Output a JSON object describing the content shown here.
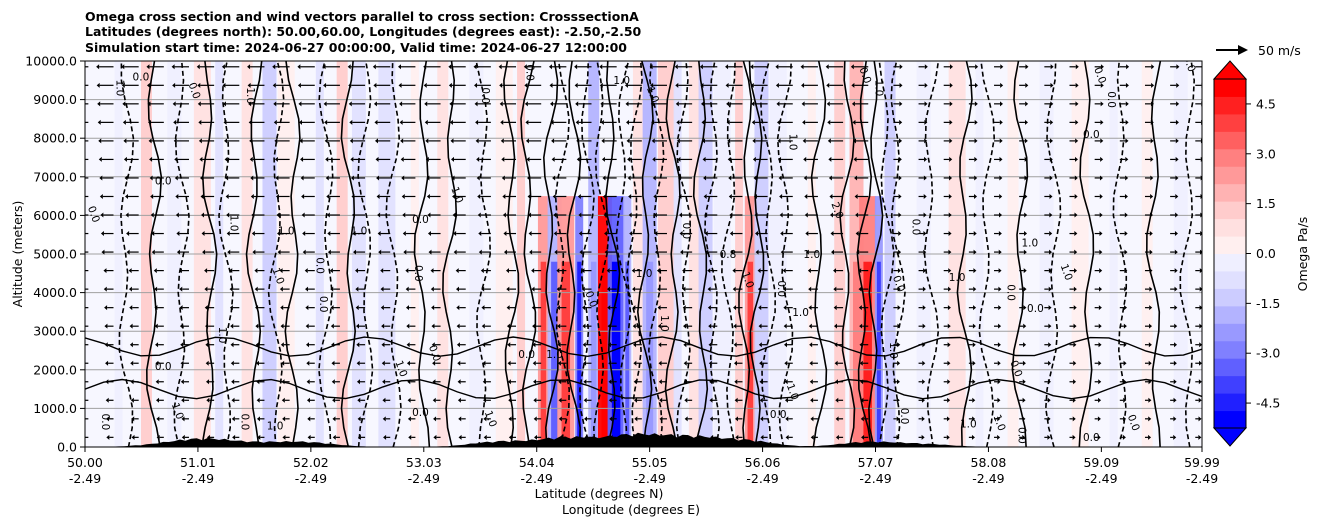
{
  "chart_data": {
    "type": "heatmap",
    "title_lines": [
      "Omega cross section and wind vectors parallel to cross section: CrosssectionA",
      "Latitudes (degrees north): 50.00,60.00, Longitudes (degrees east): -2.50,-2.50",
      "Simulation start time: 2024-06-27 00:00:00, Valid time: 2024-06-27 12:00:00"
    ],
    "ylabel": "Altitude (meters)",
    "xlabel_line1": "Latitude (degrees N)",
    "xlabel_line2": "Longitude (degrees E)",
    "ylim": [
      0,
      10000
    ],
    "xlim": [
      50.0,
      59.99
    ],
    "y_ticks": [
      "0.0",
      "1000.0",
      "2000.0",
      "3000.0",
      "4000.0",
      "5000.0",
      "6000.0",
      "7000.0",
      "8000.0",
      "9000.0",
      "10000.0"
    ],
    "x_ticks": [
      {
        "lat": "50.00",
        "lon": "-2.49",
        "value": 50.0
      },
      {
        "lat": "51.01",
        "lon": "-2.49",
        "value": 51.01
      },
      {
        "lat": "52.02",
        "lon": "-2.49",
        "value": 52.02
      },
      {
        "lat": "53.03",
        "lon": "-2.49",
        "value": 53.03
      },
      {
        "lat": "54.04",
        "lon": "-2.49",
        "value": 54.04
      },
      {
        "lat": "55.05",
        "lon": "-2.49",
        "value": 55.05
      },
      {
        "lat": "56.06",
        "lon": "-2.49",
        "value": 56.06
      },
      {
        "lat": "57.07",
        "lon": "-2.49",
        "value": 57.07
      },
      {
        "lat": "58.08",
        "lon": "-2.49",
        "value": 58.08
      },
      {
        "lat": "59.09",
        "lon": "-2.49",
        "value": 59.09
      },
      {
        "lat": "59.99",
        "lon": "-2.49",
        "value": 59.99
      }
    ],
    "colorbar": {
      "label": "Omega Pa/s",
      "range": [
        -5.25,
        5.25
      ],
      "ticks": [
        "-4.5",
        "-3.0",
        "-1.5",
        "0.0",
        "1.5",
        "3.0",
        "4.5"
      ],
      "colors": [
        "#0000ff",
        "#2020ff",
        "#4040ff",
        "#6060ff",
        "#8080ff",
        "#9999ff",
        "#b3b3ff",
        "#ccccff",
        "#e0e0ff",
        "#efefff",
        "#ffefef",
        "#ffe0e0",
        "#ffcccc",
        "#ffb3b3",
        "#ff9999",
        "#ff8080",
        "#ff6060",
        "#ff4040",
        "#ff2020",
        "#ff0000"
      ]
    },
    "quiver_key": "50 m/s",
    "omega_strips": [
      {
        "x": 50.3,
        "v": -0.3
      },
      {
        "x": 50.55,
        "v": 1.2
      },
      {
        "x": 50.8,
        "v": -0.5
      },
      {
        "x": 51.05,
        "v": 0.8
      },
      {
        "x": 51.2,
        "v": -1.0
      },
      {
        "x": 51.45,
        "v": 0.6
      },
      {
        "x": 51.65,
        "v": -1.1
      },
      {
        "x": 51.8,
        "v": 0.5
      },
      {
        "x": 52.1,
        "v": -0.6
      },
      {
        "x": 52.3,
        "v": 1.4
      },
      {
        "x": 52.45,
        "v": -0.8
      },
      {
        "x": 52.7,
        "v": -0.6
      },
      {
        "x": 52.95,
        "v": 0.5
      },
      {
        "x": 53.2,
        "v": 0.9
      },
      {
        "x": 53.5,
        "v": -0.4
      },
      {
        "x": 53.75,
        "v": 0.4
      },
      {
        "x": 53.9,
        "v": 1.2
      },
      {
        "x": 54.1,
        "v": 2.4
      },
      {
        "x": 54.2,
        "v": -2.1
      },
      {
        "x": 54.3,
        "v": 2.6
      },
      {
        "x": 54.42,
        "v": -2.8
      },
      {
        "x": 54.55,
        "v": -1.6
      },
      {
        "x": 54.65,
        "v": 5.0
      },
      {
        "x": 54.75,
        "v": -3.4
      },
      {
        "x": 54.85,
        "v": -2.1
      },
      {
        "x": 54.95,
        "v": 0.9
      },
      {
        "x": 55.05,
        "v": -1.6
      },
      {
        "x": 55.2,
        "v": 1.2
      },
      {
        "x": 55.3,
        "v": -0.9
      },
      {
        "x": 55.45,
        "v": 1.0
      },
      {
        "x": 55.55,
        "v": -1.4
      },
      {
        "x": 55.7,
        "v": -0.5
      },
      {
        "x": 55.85,
        "v": 1.2
      },
      {
        "x": 55.95,
        "v": 2.3
      },
      {
        "x": 56.05,
        "v": -1.3
      },
      {
        "x": 56.2,
        "v": -0.4
      },
      {
        "x": 56.5,
        "v": 0.5
      },
      {
        "x": 56.75,
        "v": 1.4
      },
      {
        "x": 56.9,
        "v": 1.9
      },
      {
        "x": 57.0,
        "v": 2.7
      },
      {
        "x": 57.1,
        "v": -2.4
      },
      {
        "x": 57.2,
        "v": -1.1
      },
      {
        "x": 57.5,
        "v": -0.5
      },
      {
        "x": 57.8,
        "v": 0.6
      },
      {
        "x": 58.0,
        "v": -0.3
      },
      {
        "x": 58.3,
        "v": 0.5
      },
      {
        "x": 58.6,
        "v": -0.4
      },
      {
        "x": 58.9,
        "v": 0.4
      },
      {
        "x": 59.2,
        "v": -0.5
      },
      {
        "x": 59.5,
        "v": 0.4
      },
      {
        "x": 59.8,
        "v": -0.3
      }
    ],
    "terrain": [
      {
        "x": 50.75,
        "h": 80
      },
      {
        "x": 51.1,
        "h": 200
      },
      {
        "x": 51.6,
        "h": 90
      },
      {
        "x": 52.0,
        "h": 120
      },
      {
        "x": 53.7,
        "h": 150
      },
      {
        "x": 54.3,
        "h": 260
      },
      {
        "x": 54.9,
        "h": 320
      },
      {
        "x": 55.4,
        "h": 260
      },
      {
        "x": 55.9,
        "h": 180
      },
      {
        "x": 57.0,
        "h": 140
      },
      {
        "x": 57.5,
        "h": 80
      }
    ],
    "contour_labels": [
      {
        "t": "1.0",
        "x": 50.28,
        "y": 9300
      },
      {
        "t": "0.0",
        "x": 50.5,
        "y": 9500
      },
      {
        "t": "0.0",
        "x": 50.95,
        "y": 9200
      },
      {
        "t": "1.0",
        "x": 51.45,
        "y": 9100
      },
      {
        "t": "0.0",
        "x": 50.7,
        "y": 6800
      },
      {
        "t": "0.0",
        "x": 50.05,
        "y": 6000
      },
      {
        "t": "1.0",
        "x": 51.3,
        "y": 5800
      },
      {
        "t": "1.0",
        "x": 51.8,
        "y": 5500
      },
      {
        "t": "1.0",
        "x": 51.7,
        "y": 4400
      },
      {
        "t": "0.0",
        "x": 52.07,
        "y": 4700
      },
      {
        "t": "0.0",
        "x": 53.0,
        "y": 5800
      },
      {
        "t": "1.0",
        "x": 53.3,
        "y": 6500
      },
      {
        "t": "0.0",
        "x": 52.95,
        "y": 4500
      },
      {
        "t": "1.0",
        "x": 52.45,
        "y": 5500
      },
      {
        "t": "0.0",
        "x": 53.1,
        "y": 2400
      },
      {
        "t": "1.0",
        "x": 51.2,
        "y": 2900
      },
      {
        "t": "0.0",
        "x": 50.7,
        "y": 2000
      },
      {
        "t": "1.0",
        "x": 52.8,
        "y": 2000
      },
      {
        "t": "0.0",
        "x": 51.4,
        "y": 650
      },
      {
        "t": "1.0",
        "x": 51.7,
        "y": 450
      },
      {
        "t": "1.0",
        "x": 50.8,
        "y": 900
      },
      {
        "t": "0.0",
        "x": 50.15,
        "y": 650
      },
      {
        "t": "0.0",
        "x": 53.0,
        "y": 800
      },
      {
        "t": "1.0",
        "x": 53.6,
        "y": 700
      },
      {
        "t": "0.0",
        "x": 53.95,
        "y": 9700
      },
      {
        "t": "1.0",
        "x": 54.8,
        "y": 9400
      },
      {
        "t": "1.0",
        "x": 55.05,
        "y": 9100
      },
      {
        "t": "0.0",
        "x": 55.35,
        "y": 5600
      },
      {
        "t": "0.8",
        "x": 55.75,
        "y": 4900
      },
      {
        "t": "1.0",
        "x": 55.9,
        "y": 4300
      },
      {
        "t": "0.0",
        "x": 56.2,
        "y": 4100
      },
      {
        "t": "1.0",
        "x": 56.4,
        "y": 3400
      },
      {
        "t": "2.0",
        "x": 56.7,
        "y": 6100
      },
      {
        "t": "1.0",
        "x": 56.3,
        "y": 7900
      },
      {
        "t": "1.0",
        "x": 56.5,
        "y": 4900
      },
      {
        "t": "0.0",
        "x": 56.95,
        "y": 9600
      },
      {
        "t": "1.0",
        "x": 57.07,
        "y": 9300
      },
      {
        "t": "0.0",
        "x": 58.5,
        "y": 3500
      },
      {
        "t": "1.0",
        "x": 58.75,
        "y": 4500
      },
      {
        "t": "0.0",
        "x": 58.25,
        "y": 4000
      },
      {
        "t": "1.0",
        "x": 58.45,
        "y": 5200
      },
      {
        "t": "0.0",
        "x": 59.05,
        "y": 9600
      },
      {
        "t": "0.0",
        "x": 59.15,
        "y": 9000
      },
      {
        "t": "0.0",
        "x": 59.0,
        "y": 8000
      },
      {
        "t": "0.0",
        "x": 59.85,
        "y": 9900
      },
      {
        "t": "0.0",
        "x": 57.4,
        "y": 5700
      },
      {
        "t": "1.0",
        "x": 57.8,
        "y": 4300
      },
      {
        "t": "0.0",
        "x": 58.3,
        "y": 2000
      },
      {
        "t": "1.0",
        "x": 57.2,
        "y": 2500
      },
      {
        "t": "0.0",
        "x": 56.2,
        "y": 750
      },
      {
        "t": "1.0",
        "x": 56.3,
        "y": 1400
      },
      {
        "t": "0.0",
        "x": 57.3,
        "y": 800
      },
      {
        "t": "1.0",
        "x": 57.9,
        "y": 500
      },
      {
        "t": "1.0",
        "x": 58.15,
        "y": 600
      },
      {
        "t": "0.0",
        "x": 58.35,
        "y": 300
      },
      {
        "t": "0.0",
        "x": 59.0,
        "y": 150
      },
      {
        "t": "0.0",
        "x": 59.35,
        "y": 600
      },
      {
        "t": "0.0",
        "x": 53.55,
        "y": 9100
      },
      {
        "t": "1.0",
        "x": 54.2,
        "y": 2300
      },
      {
        "t": "0.0",
        "x": 54.5,
        "y": 3800
      },
      {
        "t": "1.0",
        "x": 55.15,
        "y": 3200
      },
      {
        "t": "1.0",
        "x": 55.0,
        "y": 4400
      },
      {
        "t": "0.0",
        "x": 57.25,
        "y": 4200
      },
      {
        "t": "0.0",
        "x": 52.1,
        "y": 3700
      },
      {
        "t": "0.0",
        "x": 53.95,
        "y": 2300
      }
    ]
  }
}
